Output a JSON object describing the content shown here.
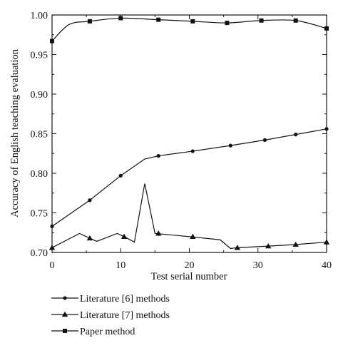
{
  "chart_data": {
    "type": "line",
    "xlabel": "Test serial number",
    "ylabel": "Accuracy of English teaching evaluation",
    "xlim": [
      0,
      40
    ],
    "ylim": [
      0.7,
      1.0
    ],
    "xticks": [
      0,
      10,
      20,
      30,
      40
    ],
    "yticks": [
      0.7,
      0.75,
      0.8,
      0.85,
      0.9,
      0.95,
      1.0
    ],
    "grid": false,
    "legend_position": "bottom-left, below plot",
    "series": [
      {
        "name": "Literature [6] methods",
        "marker": "circle",
        "color": "#111111",
        "smooth": false,
        "line": [
          [
            0,
            0.733
          ],
          [
            5.5,
            0.766
          ],
          [
            10,
            0.797
          ],
          [
            13.5,
            0.818
          ],
          [
            15.5,
            0.822
          ],
          [
            20.5,
            0.828
          ],
          [
            26,
            0.835
          ],
          [
            31,
            0.842
          ],
          [
            35.5,
            0.849
          ],
          [
            40,
            0.856
          ]
        ],
        "marker_points": [
          [
            0,
            0.733
          ],
          [
            5.5,
            0.766
          ],
          [
            10,
            0.797
          ],
          [
            15.5,
            0.822
          ],
          [
            20.5,
            0.828
          ],
          [
            26,
            0.835
          ],
          [
            31,
            0.842
          ],
          [
            35.5,
            0.849
          ],
          [
            40,
            0.856
          ]
        ]
      },
      {
        "name": "Literature [7] methods",
        "marker": "triangle",
        "color": "#111111",
        "smooth": false,
        "line": [
          [
            0,
            0.706
          ],
          [
            4,
            0.724
          ],
          [
            5.5,
            0.718
          ],
          [
            6.5,
            0.714
          ],
          [
            9.5,
            0.724
          ],
          [
            10.5,
            0.72
          ],
          [
            12,
            0.713
          ],
          [
            13.5,
            0.787
          ],
          [
            15,
            0.724
          ],
          [
            20,
            0.72
          ],
          [
            24.5,
            0.716
          ],
          [
            26,
            0.705
          ],
          [
            27,
            0.706
          ],
          [
            31.5,
            0.708
          ],
          [
            35.5,
            0.71
          ],
          [
            40,
            0.713
          ]
        ],
        "marker_points": [
          [
            0,
            0.706
          ],
          [
            5.5,
            0.718
          ],
          [
            10.5,
            0.72
          ],
          [
            15.5,
            0.724
          ],
          [
            20.5,
            0.72
          ],
          [
            27,
            0.706
          ],
          [
            31.5,
            0.708
          ],
          [
            35.5,
            0.71
          ],
          [
            40,
            0.713
          ]
        ]
      },
      {
        "name": "Paper method",
        "marker": "square",
        "color": "#111111",
        "smooth": true,
        "line": [
          [
            0,
            0.967
          ],
          [
            2.5,
            0.988
          ],
          [
            5.5,
            0.992
          ],
          [
            10,
            0.996
          ],
          [
            15.5,
            0.994
          ],
          [
            20.5,
            0.992
          ],
          [
            25.5,
            0.99
          ],
          [
            30.5,
            0.993
          ],
          [
            35.5,
            0.993
          ],
          [
            40,
            0.983
          ]
        ],
        "marker_points": [
          [
            0,
            0.967
          ],
          [
            5.5,
            0.992
          ],
          [
            10,
            0.996
          ],
          [
            15.5,
            0.994
          ],
          [
            20.5,
            0.992
          ],
          [
            25.5,
            0.99
          ],
          [
            30.5,
            0.993
          ],
          [
            35.5,
            0.993
          ],
          [
            40,
            0.983
          ]
        ]
      }
    ]
  }
}
